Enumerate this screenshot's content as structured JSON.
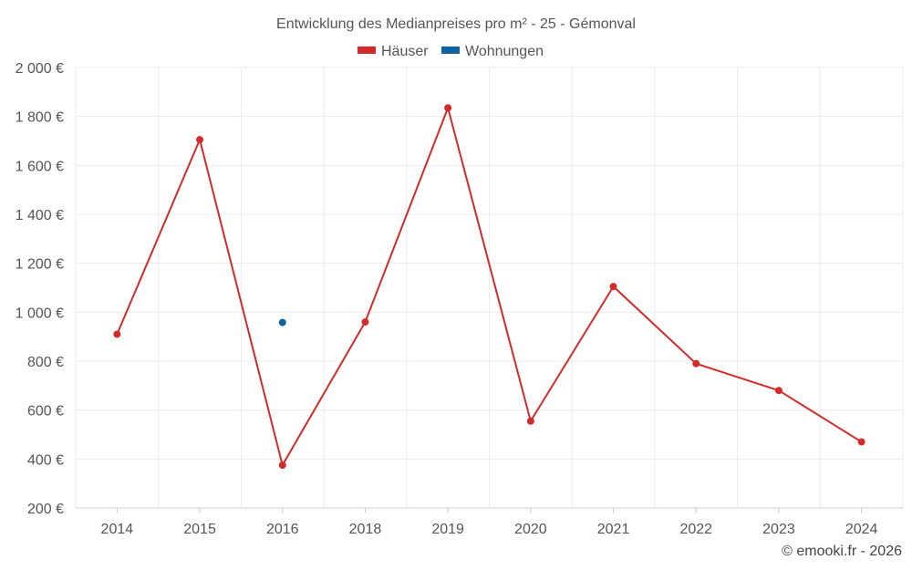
{
  "chart_data": {
    "type": "line",
    "title": "Entwicklung des Medianpreises pro m² - 25 - Gémonval",
    "categories": [
      "2014",
      "2015",
      "2016",
      "2018",
      "2019",
      "2020",
      "2021",
      "2022",
      "2023",
      "2024"
    ],
    "series": [
      {
        "name": "Häuser",
        "color": "#d32a2a",
        "values": [
          910,
          1705,
          375,
          960,
          1835,
          555,
          1105,
          790,
          680,
          470
        ]
      },
      {
        "name": "Wohnungen",
        "color": "#0d629f",
        "values": [
          null,
          null,
          958,
          null,
          null,
          null,
          null,
          null,
          null,
          null
        ]
      }
    ],
    "y_ticks": [
      "200 €",
      "400 €",
      "600 €",
      "800 €",
      "1 000 €",
      "1 200 €",
      "1 400 €",
      "1 600 €",
      "1 800 €",
      "2 000 €"
    ],
    "y_tick_values": [
      200,
      400,
      600,
      800,
      1000,
      1200,
      1400,
      1600,
      1800,
      2000
    ],
    "ylim": [
      200,
      2000
    ],
    "grid": true,
    "legend_position": "top-center"
  },
  "footer": {
    "credit": "© emooki.fr - 2026"
  }
}
